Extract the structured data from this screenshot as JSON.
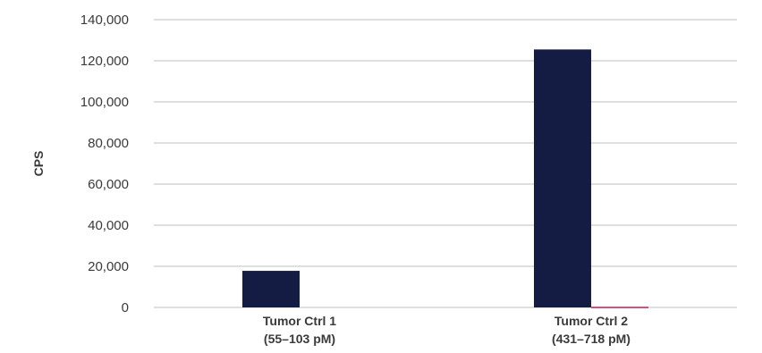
{
  "chart_data": {
    "type": "bar",
    "title": "",
    "xlabel": "",
    "ylabel": "CPS",
    "ylim": [
      0,
      140000
    ],
    "yticks": [
      0,
      20000,
      40000,
      60000,
      80000,
      100000,
      120000,
      140000
    ],
    "ytick_labels": [
      "0",
      "20,000",
      "40,000",
      "60,000",
      "80,000",
      "100,000",
      "120,000",
      "140,000"
    ],
    "grid": true,
    "legend": "none",
    "categories": [
      {
        "line1": "Tumor Ctrl 1",
        "line2": "(55–103 pM)"
      },
      {
        "line1": "Tumor Ctrl 2",
        "line2": "(431–718 pM)"
      }
    ],
    "series": [
      {
        "values": [
          17800,
          125500
        ],
        "color": "#141c44"
      },
      {
        "values": [
          0,
          300
        ],
        "color": "#c2185b"
      }
    ]
  }
}
